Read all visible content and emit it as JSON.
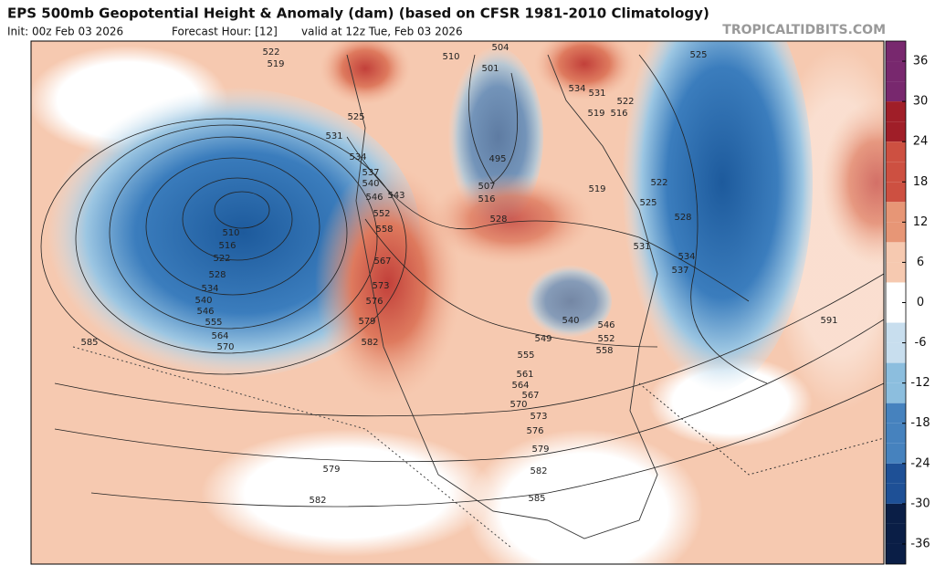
{
  "header": {
    "title": "EPS 500mb Geopotential Height & Anomaly (dam) (based on CFSR 1981-2010 Climatology)",
    "init": "Init: 00z Feb 03 2026",
    "forecast_hour": "Forecast Hour: [12]",
    "valid": "valid at 12z Tue, Feb 03 2026",
    "watermark": "TROPICALTIDBITS.COM"
  },
  "colorbar": {
    "range": [
      -39,
      39
    ],
    "ticks": [
      36,
      30,
      24,
      18,
      12,
      6,
      0,
      -6,
      -12,
      -18,
      -24,
      -30,
      -36
    ]
  },
  "contour_labels": [
    522,
    519,
    504,
    510,
    501,
    525,
    534,
    531,
    522,
    519,
    516,
    525,
    531,
    534,
    537,
    540,
    546,
    543,
    552,
    495,
    507,
    516,
    528,
    519,
    522,
    525,
    528,
    531,
    534,
    537,
    510,
    516,
    522,
    528,
    534,
    540,
    546,
    555,
    564,
    570,
    558,
    567,
    573,
    576,
    579,
    582,
    585,
    591,
    540,
    546,
    549,
    552,
    558,
    555,
    561,
    564,
    567,
    570,
    573,
    576,
    579,
    582,
    585,
    579,
    582
  ]
}
